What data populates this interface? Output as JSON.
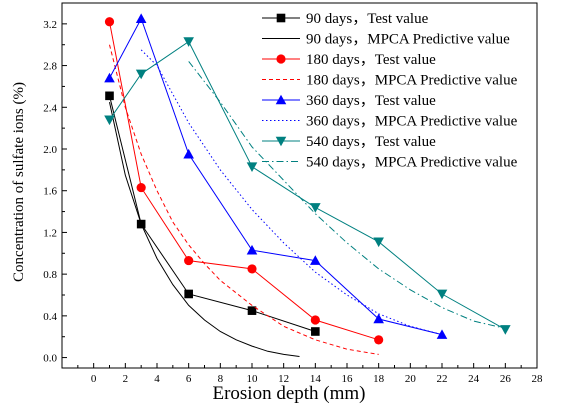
{
  "chart_data": {
    "type": "line",
    "xlabel": "Erosion depth (mm)",
    "ylabel": "Concentration of sulfate ions (%)",
    "xlim": [
      -2,
      28
    ],
    "ylim": [
      -0.1,
      3.4
    ],
    "xticks": [
      0,
      2,
      4,
      6,
      8,
      10,
      12,
      14,
      16,
      18,
      20,
      22,
      24,
      26,
      28
    ],
    "xtick_labels": [
      "0",
      "2",
      "4",
      "6",
      "8",
      "10",
      "12",
      "14",
      "16",
      "18",
      "20",
      "22",
      "24",
      "26",
      "28"
    ],
    "yticks": [
      0.0,
      0.4,
      0.8,
      1.2,
      1.6,
      2.0,
      2.4,
      2.8,
      3.2
    ],
    "ytick_labels": [
      "0.0",
      "0.4",
      "0.8",
      "1.2",
      "1.6",
      "2.0",
      "2.4",
      "2.8",
      "3.2"
    ],
    "grid": false,
    "legend_position": "top-right",
    "series": [
      {
        "name": "90 days，Test value",
        "kind": "test",
        "color": "#000000",
        "marker": "square",
        "x": [
          1,
          3,
          6,
          10,
          14
        ],
        "y": [
          2.51,
          1.28,
          0.61,
          0.45,
          0.25
        ]
      },
      {
        "name": "90 days，MPCA Predictive value",
        "kind": "predict",
        "color": "#000000",
        "dash": "solid",
        "x": [
          1,
          2,
          3,
          4,
          5,
          6,
          7,
          8,
          9,
          10,
          11,
          12,
          13
        ],
        "y": [
          2.45,
          1.75,
          1.28,
          0.95,
          0.7,
          0.5,
          0.36,
          0.25,
          0.17,
          0.11,
          0.06,
          0.03,
          0.01
        ]
      },
      {
        "name": "180 days，Test value",
        "kind": "test",
        "color": "#ff0000",
        "marker": "circle",
        "x": [
          1,
          3,
          6,
          10,
          14,
          18
        ],
        "y": [
          3.22,
          1.63,
          0.93,
          0.85,
          0.36,
          0.17
        ]
      },
      {
        "name": "180 days，MPCA Predictive value",
        "kind": "predict",
        "color": "#ff0000",
        "dash": "dash",
        "x": [
          1,
          2,
          3,
          4,
          5,
          6,
          7,
          8,
          10,
          12,
          14,
          16,
          18
        ],
        "y": [
          3.0,
          2.4,
          1.95,
          1.6,
          1.3,
          1.08,
          0.9,
          0.74,
          0.5,
          0.3,
          0.17,
          0.08,
          0.03
        ]
      },
      {
        "name": "360 days，Test value",
        "kind": "test",
        "color": "#0000ff",
        "marker": "triangle-up",
        "x": [
          1,
          3,
          6,
          10,
          14,
          18,
          22
        ],
        "y": [
          2.68,
          3.25,
          1.95,
          1.03,
          0.93,
          0.37,
          0.22
        ]
      },
      {
        "name": "360 days，MPCA Predictive value",
        "kind": "predict",
        "color": "#0000ff",
        "dash": "dot",
        "x": [
          3,
          4,
          6,
          8,
          10,
          12,
          14,
          16,
          18,
          20,
          22
        ],
        "y": [
          2.95,
          2.8,
          2.25,
          1.8,
          1.42,
          1.1,
          0.82,
          0.6,
          0.42,
          0.3,
          0.22
        ]
      },
      {
        "name": "540 days，Test value",
        "kind": "test",
        "color": "#008080",
        "marker": "triangle-down",
        "x": [
          1,
          3,
          6,
          10,
          14,
          18,
          22,
          26
        ],
        "y": [
          2.28,
          2.72,
          3.03,
          1.83,
          1.44,
          1.11,
          0.61,
          0.27
        ]
      },
      {
        "name": "540 days，MPCA Predictive value",
        "kind": "predict",
        "color": "#008080",
        "dash": "dashdot",
        "x": [
          6,
          8,
          10,
          12,
          14,
          16,
          18,
          20,
          22,
          24,
          26
        ],
        "y": [
          2.84,
          2.45,
          2.02,
          1.7,
          1.38,
          1.1,
          0.85,
          0.65,
          0.48,
          0.35,
          0.28
        ]
      }
    ]
  }
}
